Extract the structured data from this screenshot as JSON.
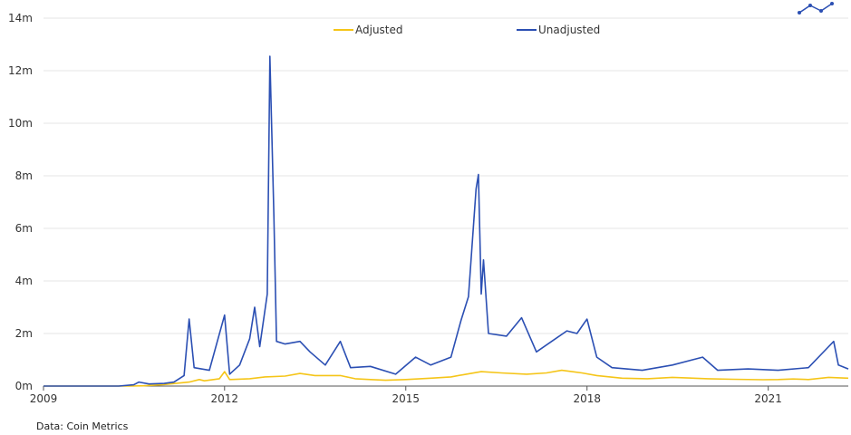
{
  "chart_data": {
    "type": "line",
    "x_axis": {
      "kind": "date",
      "range": [
        "2009-01-01",
        "2022-04-30"
      ],
      "ticks": [
        "2009",
        "2012",
        "2015",
        "2018",
        "2021"
      ]
    },
    "y_axis": {
      "range": [
        0,
        14000000
      ],
      "ticks": [
        "0m",
        "2m",
        "4m",
        "6m",
        "8m",
        "10m",
        "12m",
        "14m"
      ]
    },
    "grid": {
      "horizontal": true,
      "vertical": false
    },
    "legend": {
      "placement": "top-center"
    },
    "source": "Data: Coin Metrics",
    "series": [
      {
        "name": "Adjusted",
        "color": "#f5c518",
        "points": [
          [
            "2009-01-01",
            0
          ],
          [
            "2010-06-01",
            0
          ],
          [
            "2010-09-01",
            10000
          ],
          [
            "2011-01-01",
            60000
          ],
          [
            "2011-06-01",
            150000
          ],
          [
            "2011-08-01",
            250000
          ],
          [
            "2011-09-01",
            200000
          ],
          [
            "2011-12-01",
            280000
          ],
          [
            "2012-01-01",
            550000
          ],
          [
            "2012-02-01",
            250000
          ],
          [
            "2012-06-01",
            280000
          ],
          [
            "2012-09-01",
            350000
          ],
          [
            "2013-01-01",
            380000
          ],
          [
            "2013-04-01",
            480000
          ],
          [
            "2013-07-01",
            400000
          ],
          [
            "2013-12-01",
            400000
          ],
          [
            "2014-03-01",
            280000
          ],
          [
            "2014-06-01",
            250000
          ],
          [
            "2014-09-01",
            220000
          ],
          [
            "2015-01-01",
            250000
          ],
          [
            "2015-06-01",
            300000
          ],
          [
            "2015-10-01",
            350000
          ],
          [
            "2016-01-01",
            450000
          ],
          [
            "2016-04-01",
            550000
          ],
          [
            "2016-08-01",
            500000
          ],
          [
            "2017-01-01",
            450000
          ],
          [
            "2017-05-01",
            500000
          ],
          [
            "2017-08-01",
            600000
          ],
          [
            "2017-12-01",
            500000
          ],
          [
            "2018-03-01",
            400000
          ],
          [
            "2018-08-01",
            300000
          ],
          [
            "2019-01-01",
            280000
          ],
          [
            "2019-06-01",
            330000
          ],
          [
            "2020-01-01",
            280000
          ],
          [
            "2020-06-01",
            260000
          ],
          [
            "2020-12-01",
            240000
          ],
          [
            "2021-03-01",
            250000
          ],
          [
            "2021-06-01",
            270000
          ],
          [
            "2021-09-01",
            250000
          ],
          [
            "2022-01-01",
            330000
          ],
          [
            "2022-04-30",
            300000
          ]
        ]
      },
      {
        "name": "Unadjusted",
        "color": "#2b4fb3",
        "points": [
          [
            "2009-01-01",
            0
          ],
          [
            "2010-04-01",
            0
          ],
          [
            "2010-07-01",
            50000
          ],
          [
            "2010-08-01",
            150000
          ],
          [
            "2010-10-01",
            80000
          ],
          [
            "2011-01-01",
            100000
          ],
          [
            "2011-03-01",
            150000
          ],
          [
            "2011-05-01",
            400000
          ],
          [
            "2011-06-01",
            2550000
          ],
          [
            "2011-07-01",
            700000
          ],
          [
            "2011-10-01",
            600000
          ],
          [
            "2012-01-01",
            2700000
          ],
          [
            "2012-02-01",
            450000
          ],
          [
            "2012-04-01",
            800000
          ],
          [
            "2012-06-01",
            1800000
          ],
          [
            "2012-07-01",
            3000000
          ],
          [
            "2012-08-01",
            1500000
          ],
          [
            "2012-09-15",
            3500000
          ],
          [
            "2012-10-01",
            12550000
          ],
          [
            "2012-10-25",
            6500000
          ],
          [
            "2012-11-10",
            1700000
          ],
          [
            "2013-01-01",
            1600000
          ],
          [
            "2013-04-01",
            1700000
          ],
          [
            "2013-06-01",
            1300000
          ],
          [
            "2013-09-01",
            800000
          ],
          [
            "2013-12-01",
            1700000
          ],
          [
            "2014-02-01",
            700000
          ],
          [
            "2014-06-01",
            750000
          ],
          [
            "2014-11-01",
            450000
          ],
          [
            "2015-03-01",
            1100000
          ],
          [
            "2015-06-01",
            800000
          ],
          [
            "2015-10-01",
            1100000
          ],
          [
            "2015-12-01",
            2500000
          ],
          [
            "2016-01-15",
            3400000
          ],
          [
            "2016-03-01",
            7500000
          ],
          [
            "2016-03-15",
            8050000
          ],
          [
            "2016-04-01",
            3500000
          ],
          [
            "2016-04-15",
            4800000
          ],
          [
            "2016-05-15",
            2000000
          ],
          [
            "2016-09-01",
            1900000
          ],
          [
            "2016-12-01",
            2600000
          ],
          [
            "2017-03-01",
            1300000
          ],
          [
            "2017-06-01",
            1700000
          ],
          [
            "2017-09-01",
            2100000
          ],
          [
            "2017-11-01",
            2000000
          ],
          [
            "2018-01-01",
            2550000
          ],
          [
            "2018-03-01",
            1100000
          ],
          [
            "2018-06-01",
            700000
          ],
          [
            "2018-12-01",
            600000
          ],
          [
            "2019-06-01",
            800000
          ],
          [
            "2019-12-01",
            1100000
          ],
          [
            "2020-03-01",
            600000
          ],
          [
            "2020-09-01",
            650000
          ],
          [
            "2021-03-01",
            600000
          ],
          [
            "2021-09-01",
            700000
          ],
          [
            "2022-01-01",
            1500000
          ],
          [
            "2022-02-01",
            1700000
          ],
          [
            "2022-03-01",
            800000
          ],
          [
            "2022-04-30",
            650000
          ]
        ]
      }
    ]
  }
}
